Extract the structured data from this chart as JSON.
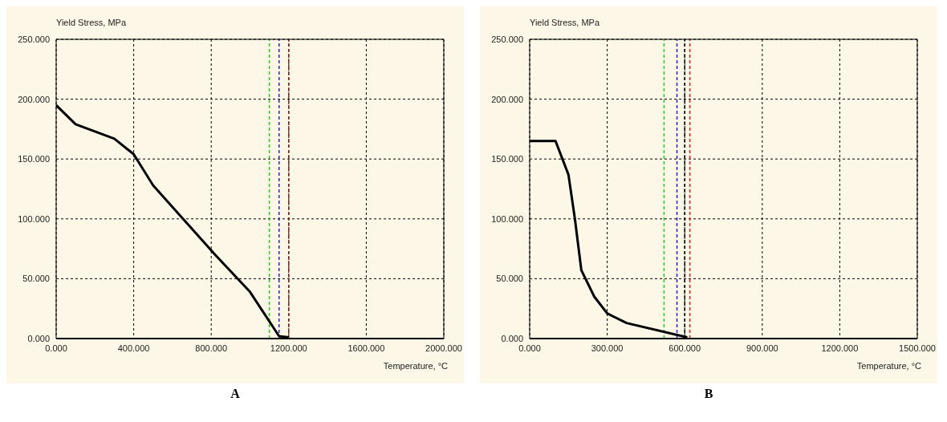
{
  "chart_data": [
    {
      "type": "line",
      "xlabel": "Temperature, °C",
      "ylabel": "Yield Stress, MPa",
      "annotations": [
        "A"
      ],
      "series": [
        {
          "color": "#000000",
          "x": [
            0,
            100,
            300,
            400,
            500,
            820,
            1000,
            1150,
            1200
          ],
          "values": [
            195,
            179,
            167,
            154,
            128,
            70,
            39,
            2,
            1
          ]
        }
      ],
      "xlim": [
        0,
        2000
      ],
      "xticks": [
        {
          "value": 0,
          "label": "0.000"
        },
        {
          "value": 400,
          "label": "400.000"
        },
        {
          "value": 800,
          "label": "800.000"
        },
        {
          "value": 1200,
          "label": "1200.000"
        },
        {
          "value": 1600,
          "label": "1600.000"
        },
        {
          "value": 2000,
          "label": "2000.000"
        }
      ],
      "ylim": [
        0,
        250
      ],
      "yticks": [
        {
          "value": 0,
          "label": "0.000"
        },
        {
          "value": 50,
          "label": "50.000"
        },
        {
          "value": 100,
          "label": "100.000"
        },
        {
          "value": 150,
          "label": "150.000"
        },
        {
          "value": 200,
          "label": "200.000"
        },
        {
          "value": 250,
          "label": "250.000"
        }
      ],
      "grid": true,
      "marker": "none",
      "line_style": "solid",
      "ref_lines": [
        {
          "axis": "x",
          "value": 1100,
          "color": "#22cc22",
          "line_style": "dashed"
        },
        {
          "axis": "x",
          "value": 1150,
          "color": "#2222dd",
          "line_style": "dashed"
        },
        {
          "axis": "x",
          "value": 1200,
          "color": "#8b1a1a",
          "line_style": "dashed"
        }
      ]
    },
    {
      "type": "line",
      "xlabel": "Temperature, °C",
      "ylabel": "Yield Stress, MPa",
      "annotations": [
        "B"
      ],
      "series": [
        {
          "color": "#000000",
          "x": [
            0,
            100,
            150,
            175,
            200,
            250,
            300,
            375,
            610
          ],
          "values": [
            165,
            165,
            137,
            100,
            57,
            35,
            21,
            13,
            1
          ]
        }
      ],
      "xlim": [
        0,
        1500
      ],
      "xticks": [
        {
          "value": 0,
          "label": "0.000"
        },
        {
          "value": 300,
          "label": "300.000"
        },
        {
          "value": 600,
          "label": "600.000"
        },
        {
          "value": 900,
          "label": "900.000"
        },
        {
          "value": 1200,
          "label": "1200.000"
        },
        {
          "value": 1500,
          "label": "1500.000"
        }
      ],
      "ylim": [
        0,
        250
      ],
      "yticks": [
        {
          "value": 0,
          "label": "0.000"
        },
        {
          "value": 50,
          "label": "50.000"
        },
        {
          "value": 100,
          "label": "100.000"
        },
        {
          "value": 150,
          "label": "150.000"
        },
        {
          "value": 200,
          "label": "200.000"
        },
        {
          "value": 250,
          "label": "250.000"
        }
      ],
      "grid": true,
      "marker": "none",
      "line_style": "solid",
      "ref_lines": [
        {
          "axis": "x",
          "value": 520,
          "color": "#22cc22",
          "line_style": "dashed"
        },
        {
          "axis": "x",
          "value": 570,
          "color": "#2222dd",
          "line_style": "dashed"
        },
        {
          "axis": "x",
          "value": 600,
          "color": "#000000",
          "line_style": "dashed"
        },
        {
          "axis": "x",
          "value": 620,
          "color": "#dd2222",
          "line_style": "dashed"
        }
      ]
    }
  ]
}
